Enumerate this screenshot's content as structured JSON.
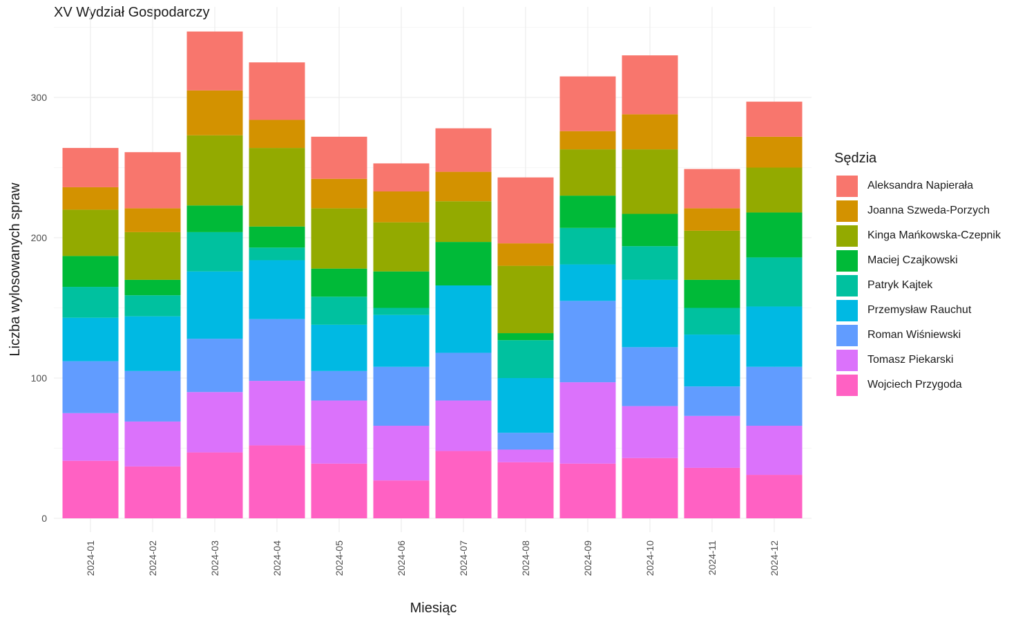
{
  "chart_data": {
    "type": "bar",
    "stacked": true,
    "title": "XV Wydział Gospodarczy",
    "xlabel": "Miesiąc",
    "ylabel": "Liczba wylosowanych spraw",
    "ylim": [
      0,
      365
    ],
    "yticks": [
      0,
      100,
      200,
      300
    ],
    "grid": true,
    "legend_title": "Sędzia",
    "legend_position": "right",
    "categories": [
      "2024-01",
      "2024-02",
      "2024-03",
      "2024-04",
      "2024-05",
      "2024-06",
      "2024-07",
      "2024-08",
      "2024-09",
      "2024-10",
      "2024-11",
      "2024-12"
    ],
    "series": [
      {
        "name": "Aleksandra Napierała",
        "color": "#F8766D",
        "values": [
          28,
          40,
          42,
          41,
          30,
          20,
          31,
          47,
          39,
          42,
          28,
          25
        ]
      },
      {
        "name": "Joanna Szweda-Porzych",
        "color": "#D39200",
        "values": [
          16,
          17,
          32,
          20,
          21,
          22,
          21,
          16,
          13,
          25,
          16,
          22
        ]
      },
      {
        "name": "Kinga Mańkowska-Czepnik",
        "color": "#93AA00",
        "values": [
          33,
          34,
          50,
          56,
          43,
          35,
          29,
          48,
          33,
          46,
          35,
          32
        ]
      },
      {
        "name": "Maciej Czajkowski",
        "color": "#00BA38",
        "values": [
          22,
          11,
          19,
          15,
          20,
          26,
          31,
          5,
          23,
          23,
          20,
          32
        ]
      },
      {
        "name": "Patryk Kajtek",
        "color": "#00C19F",
        "values": [
          22,
          15,
          28,
          9,
          20,
          5,
          0,
          27,
          26,
          24,
          19,
          35
        ]
      },
      {
        "name": "Przemysław Rauchut",
        "color": "#00B9E3",
        "values": [
          31,
          39,
          48,
          42,
          33,
          37,
          48,
          39,
          26,
          48,
          37,
          43
        ]
      },
      {
        "name": "Roman Wiśniewski",
        "color": "#619CFF",
        "values": [
          37,
          36,
          38,
          44,
          21,
          42,
          34,
          12,
          58,
          42,
          21,
          42
        ]
      },
      {
        "name": "Tomasz Piekarski",
        "color": "#DB72FB",
        "values": [
          34,
          32,
          43,
          46,
          45,
          39,
          36,
          9,
          58,
          37,
          37,
          35
        ]
      },
      {
        "name": "Wojciech Przygoda",
        "color": "#FF61C3",
        "values": [
          41,
          37,
          47,
          52,
          39,
          27,
          48,
          40,
          39,
          43,
          36,
          31
        ]
      }
    ]
  }
}
